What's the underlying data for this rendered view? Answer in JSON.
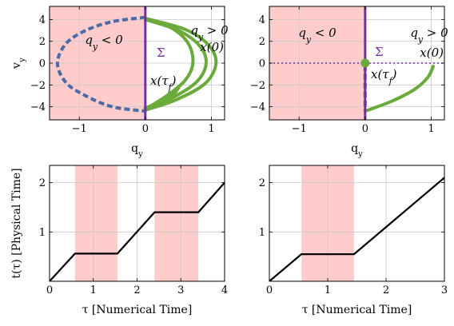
{
  "chart_data": [
    {
      "type": "line",
      "panel": "top-left",
      "xlabel": "q_y",
      "ylabel": "v_y",
      "xlim": [
        -1.45,
        1.2
      ],
      "ylim": [
        -5.2,
        5.2
      ],
      "xticks": [
        -1,
        0,
        1
      ],
      "xtick_labels": [
        "−1",
        "0",
        "1"
      ],
      "yticks": [
        -4,
        -2,
        0,
        2,
        4
      ],
      "ytick_labels": [
        "−4",
        "−2",
        "0",
        "2",
        "4"
      ],
      "grid": true,
      "shaded_region": {
        "x": [
          -1.45,
          0
        ],
        "color": "#ffcccc"
      },
      "boundary_line": {
        "x": 0,
        "color": "#7030a0"
      },
      "series": [
        {
          "style": "dashed",
          "color": "#4a6aa8",
          "points": [
            [
              0,
              4.2
            ],
            [
              -0.5,
              3.8
            ],
            [
              -0.9,
              3.0
            ],
            [
              -1.2,
              1.8
            ],
            [
              -1.33,
              0
            ],
            [
              -1.2,
              -1.8
            ],
            [
              -0.9,
              -3.0
            ],
            [
              -0.5,
              -4.0
            ],
            [
              0,
              -4.4
            ]
          ]
        },
        {
          "style": "solid",
          "color": "#6aaa3a",
          "points": [
            [
              0,
              4.1
            ],
            [
              0.4,
              3.2
            ],
            [
              0.65,
              1.8
            ],
            [
              0.72,
              0
            ],
            [
              0.6,
              -1.6
            ],
            [
              0.3,
              -3.1
            ],
            [
              0,
              -4.2
            ]
          ]
        },
        {
          "style": "solid",
          "color": "#6aaa3a",
          "points": [
            [
              0,
              4.0
            ],
            [
              0.5,
              3.0
            ],
            [
              0.82,
              1.6
            ],
            [
              0.92,
              0
            ],
            [
              0.78,
              -1.7
            ],
            [
              0.4,
              -3.2
            ],
            [
              0,
              -4.1
            ]
          ]
        },
        {
          "style": "solid",
          "color": "#6aaa3a",
          "points": [
            [
              0,
              4.1
            ],
            [
              0.6,
              3.1
            ],
            [
              0.95,
              1.7
            ],
            [
              1.07,
              0
            ],
            [
              0.9,
              -1.9
            ],
            [
              0.45,
              -3.4
            ],
            [
              0,
              -4.3
            ]
          ]
        },
        {
          "style": "solid",
          "color": "#6aaa3a",
          "points": [
            [
              0,
              -4.2
            ],
            [
              0.25,
              -3.6
            ],
            [
              0.42,
              -2.9
            ],
            [
              0.5,
              -2.3
            ]
          ]
        }
      ],
      "annotations": [
        {
          "text": "q_y < 0"
        },
        {
          "text": "q_y > 0"
        },
        {
          "text": "Σ"
        },
        {
          "text": "x(0)"
        },
        {
          "text": "x(τ_f)"
        }
      ]
    },
    {
      "type": "line",
      "panel": "top-right",
      "xlabel": "q_y",
      "xlim": [
        -1.45,
        1.2
      ],
      "ylim": [
        -5.2,
        5.2
      ],
      "xticks": [
        -1,
        0,
        1
      ],
      "xtick_labels": [
        "−1",
        "0",
        "1"
      ],
      "yticks": [
        -4,
        -2,
        0,
        2,
        4
      ],
      "ytick_labels": [
        "−4",
        "−2",
        "0",
        "2",
        "4"
      ],
      "grid": true,
      "shaded_region": {
        "x": [
          -1.45,
          0
        ],
        "color": "#ffcccc"
      },
      "boundary_line": {
        "x": 0,
        "color": "#7030a0"
      },
      "dotted_line": {
        "y": 0,
        "color": "#7030a0"
      },
      "series": [
        {
          "style": "solid",
          "color": "#6aaa3a",
          "points": [
            [
              0,
              -4.4
            ],
            [
              0.4,
              -3.5
            ],
            [
              0.75,
              -2.4
            ],
            [
              0.95,
              -1.3
            ],
            [
              1.03,
              -0.3
            ]
          ]
        },
        {
          "style": "dashed",
          "color": "#4a6aa8",
          "points": [
            [
              0,
              -0.2
            ],
            [
              0,
              -4.3
            ]
          ]
        }
      ],
      "markers": [
        {
          "x": 0,
          "y": 0,
          "color": "#6aaa3a"
        }
      ],
      "annotations": [
        {
          "text": "q_y < 0"
        },
        {
          "text": "q_y > 0"
        },
        {
          "text": "Σ"
        },
        {
          "text": "x(0)"
        },
        {
          "text": "x(τ_f)"
        }
      ]
    },
    {
      "type": "line",
      "panel": "bottom-left",
      "xlabel": "τ [Numerical Time]",
      "ylabel": "t(τ) [Physical Time]",
      "xlim": [
        0,
        4
      ],
      "ylim": [
        0,
        2.35
      ],
      "xticks": [
        0,
        1,
        2,
        3,
        4
      ],
      "xtick_labels": [
        "0",
        "1",
        "2",
        "3",
        "4"
      ],
      "yticks": [
        1,
        2
      ],
      "ytick_labels": [
        "1",
        "2"
      ],
      "grid": true,
      "shaded_bands": [
        [
          0.58,
          1.55
        ],
        [
          2.4,
          3.4
        ]
      ],
      "series": [
        {
          "style": "solid",
          "color": "#000000",
          "points": [
            [
              0,
              0
            ],
            [
              0.58,
              0.56
            ],
            [
              1.55,
              0.56
            ],
            [
              2.4,
              1.4
            ],
            [
              3.4,
              1.4
            ],
            [
              4,
              2.0
            ]
          ]
        }
      ]
    },
    {
      "type": "line",
      "panel": "bottom-right",
      "xlabel": "τ [Numerical Time]",
      "xlim": [
        0,
        3
      ],
      "ylim": [
        0,
        2.35
      ],
      "xticks": [
        0,
        1,
        2,
        3
      ],
      "xtick_labels": [
        "0",
        "1",
        "2",
        "3"
      ],
      "yticks": [
        1,
        2
      ],
      "ytick_labels": [
        "1",
        "2"
      ],
      "grid": true,
      "shaded_bands": [
        [
          0.55,
          1.45
        ]
      ],
      "series": [
        {
          "style": "solid",
          "color": "#000000",
          "points": [
            [
              0,
              0
            ],
            [
              0.55,
              0.55
            ],
            [
              1.45,
              0.55
            ],
            [
              3,
              2.1
            ]
          ]
        }
      ]
    }
  ]
}
